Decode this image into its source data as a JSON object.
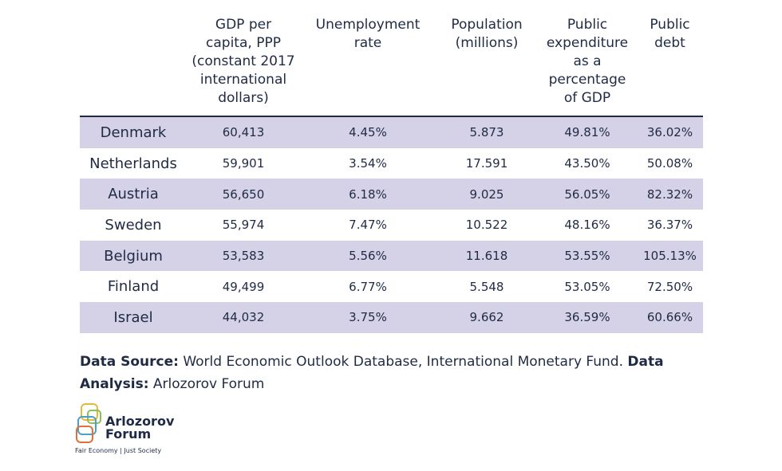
{
  "table": {
    "headers": [
      "",
      "GDP per capita, PPP (constant 2017 international dollars)",
      "Unemployment rate",
      "Population (millions)",
      "Public expenditure as a percentage of GDP",
      "Public debt"
    ],
    "rows": [
      [
        "Denmark",
        "60,413",
        "4.45%",
        "5.873",
        "49.81%",
        "36.02%"
      ],
      [
        "Netherlands",
        "59,901",
        "3.54%",
        "17.591",
        "43.50%",
        "50.08%"
      ],
      [
        "Austria",
        "56,650",
        "6.18%",
        "9.025",
        "56.05%",
        "82.32%"
      ],
      [
        "Sweden",
        "55,974",
        "7.47%",
        "10.522",
        "48.16%",
        "36.37%"
      ],
      [
        "Belgium",
        "53,583",
        "5.56%",
        "11.618",
        "53.55%",
        "105.13%"
      ],
      [
        "Finland",
        "49,499",
        "6.77%",
        "5.548",
        "53.05%",
        "72.50%"
      ],
      [
        "Israel",
        "44,032",
        "3.75%",
        "9.662",
        "36.59%",
        "60.66%"
      ]
    ],
    "row_shade_color": "#d5d2e8",
    "text_color": "#1f2a44"
  },
  "footer": {
    "source_label": "Data Source:",
    "source_text": " World Economic Outlook Database, International Monetary Fund. ",
    "analysis_label": "Data Analysis:",
    "analysis_text": " Arlozorov Forum"
  },
  "logo": {
    "name_line1": "Arlozorov",
    "name_line2": "Forum",
    "tagline": "Fair Economy | Just Society",
    "colors": [
      "#e8b838",
      "#8cbf5a",
      "#4aa0c8",
      "#e0703a"
    ]
  }
}
